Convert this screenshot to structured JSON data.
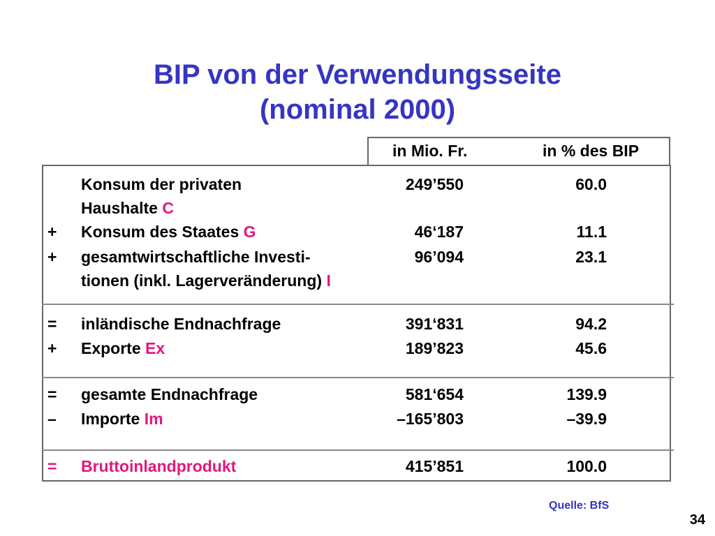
{
  "title": {
    "line1": "BIP von der Verwendungsseite",
    "line2": "(nominal 2000)"
  },
  "table": {
    "col_value": "in Mio. Fr.",
    "col_percent": "in % des BIP",
    "rows": [
      {
        "op": "",
        "label": "Konsum der privaten",
        "value": "249’550",
        "percent": "60.0"
      },
      {
        "op": "",
        "label": "Haushalte",
        "symbol": "C",
        "value": "",
        "percent": ""
      },
      {
        "op": "+",
        "label": "Konsum des Staates",
        "symbol": "G",
        "value": "46‘187",
        "percent": "11.1"
      },
      {
        "op": "+",
        "label": "gesamtwirtschaftliche Investi-",
        "value": "96’094",
        "percent": "23.1"
      },
      {
        "op": "",
        "label": "tionen (inkl. Lagerveränderung)",
        "symbol": "I",
        "value": "",
        "percent": ""
      },
      {
        "op": "=",
        "label": "inländische Endnachfrage",
        "value": "391‘831",
        "percent": "94.2"
      },
      {
        "op": "+",
        "label": "Exporte",
        "symbol": "Ex",
        "value": "189’823",
        "percent": "45.6"
      },
      {
        "op": "=",
        "label": "gesamte Endnachfrage",
        "value": "581‘654",
        "percent": "139.9"
      },
      {
        "op": "–",
        "label": "Importe",
        "symbol": "Im",
        "value": "–165’803",
        "percent": "–39.9"
      },
      {
        "op": "=",
        "label": "Bruttoinlandprodukt",
        "value": "415’851",
        "percent": "100.0"
      }
    ]
  },
  "source": "Quelle: BfS",
  "page_number": "34",
  "colors": {
    "title": "#3535c4",
    "accent": "#e0197d",
    "border": "#666666"
  }
}
